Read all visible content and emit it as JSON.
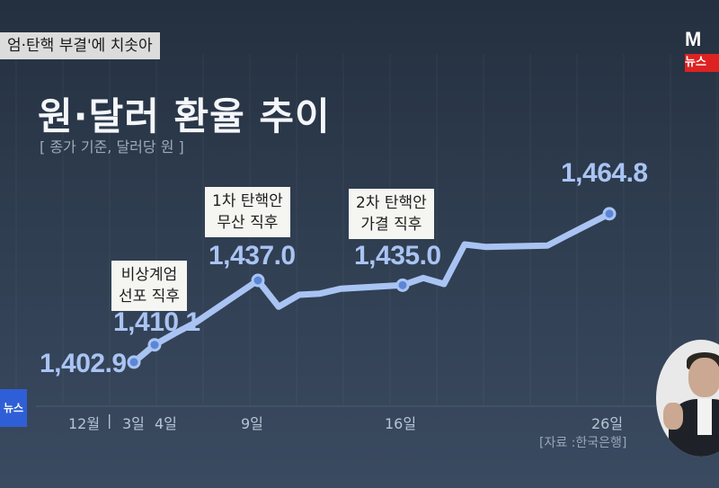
{
  "header": {
    "ticker": "엄·탄핵 부결'에 치솟아",
    "logo_top": "M",
    "logo_bottom": "뉴스",
    "left_badge": "뉴스"
  },
  "chart_data": {
    "type": "line",
    "title": "원·달러 환율 추이",
    "subtitle": "[ 종가 기준, 달러당 원 ]",
    "source": "[자료 :한국은행]",
    "series": [
      {
        "x": [
          "12-03",
          "12-04",
          "12-05",
          "12-06",
          "12-09",
          "12-10",
          "12-11",
          "12-12",
          "12-13",
          "12-16",
          "12-17",
          "12-18",
          "12-19",
          "12-20",
          "12-23",
          "12-24",
          "12-26"
        ],
        "values": [
          1402.9,
          1410.1,
          1415.0,
          1419.5,
          1437.0,
          1426.0,
          1431.0,
          1431.5,
          1433.5,
          1435.0,
          1438.0,
          1435.5,
          1452.0,
          1451.0,
          1451.5,
          1456.0,
          1464.8
        ]
      }
    ],
    "value_labels": [
      {
        "label": "1,402.9",
        "x": "12-03"
      },
      {
        "label": "1,410.1",
        "x": "12-04"
      },
      {
        "label": "1,437.0",
        "x": "12-09"
      },
      {
        "label": "1,435.0",
        "x": "12-16"
      },
      {
        "label": "1,464.8",
        "x": "12-26"
      }
    ],
    "annotations": [
      {
        "lines": [
          "비상계엄",
          "선포 직후"
        ],
        "x": "12-04"
      },
      {
        "lines": [
          "1차 탄핵안",
          "무산 직후"
        ],
        "x": "12-09"
      },
      {
        "lines": [
          "2차 탄핵안",
          "가결 직후"
        ],
        "x": "12-16"
      }
    ],
    "x_ticks": [
      {
        "label": "12월",
        "x": "12-01"
      },
      {
        "label": "3일",
        "x": "12-03"
      },
      {
        "label": "4일",
        "x": "12-04"
      },
      {
        "label": "9일",
        "x": "12-09"
      },
      {
        "label": "16일",
        "x": "12-16"
      },
      {
        "label": "26일",
        "x": "12-26"
      }
    ],
    "ylim": [
      1395,
      1470
    ],
    "grid": "vertical",
    "colors": {
      "line": "#a9c4f3",
      "marker_fill": "#5b86d6",
      "background": "#2f3d50"
    }
  }
}
